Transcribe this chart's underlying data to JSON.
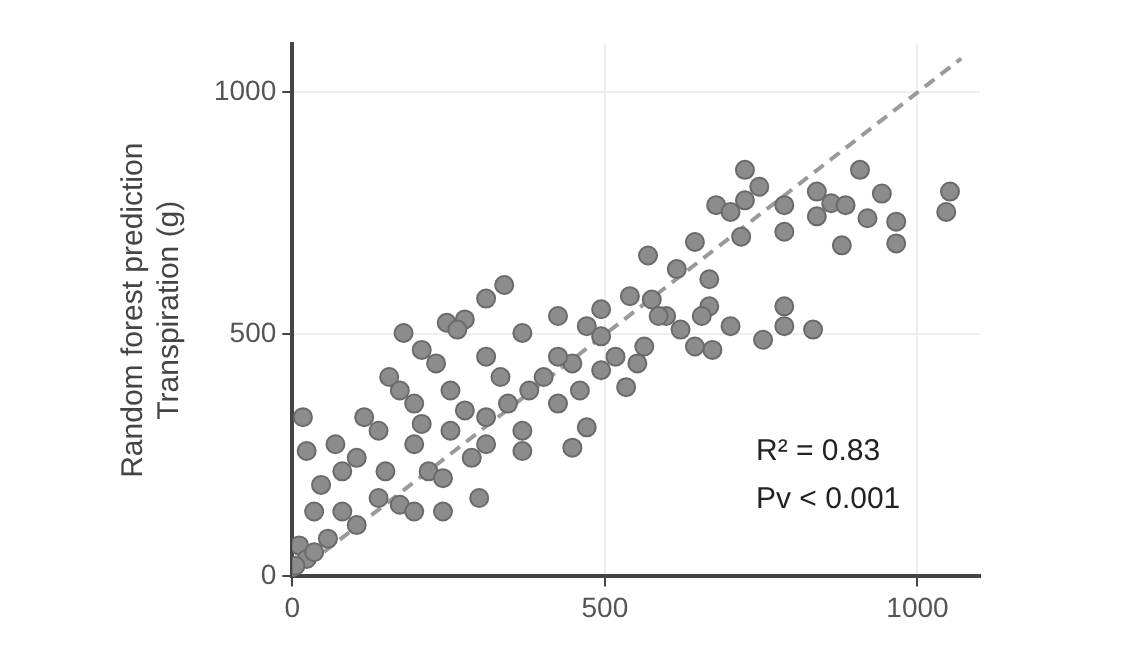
{
  "chart_data": {
    "type": "scatter",
    "ylabel": "Random forest prediction\nTranspiration (g)",
    "xlim": [
      0,
      1100
    ],
    "ylim": [
      0,
      1100
    ],
    "xticks": [
      0,
      500,
      1000
    ],
    "yticks": [
      0,
      500,
      1000
    ],
    "grid": true,
    "legend": false,
    "marker": "circle",
    "annotations": [
      "R² = 0.83",
      "Pv < 0.001"
    ],
    "series": [
      {
        "color": "#8c8c8c",
        "x": [
          724,
          908,
          678,
          701,
          724,
          747,
          787,
          839,
          839,
          862,
          885,
          879,
          920,
          943,
          966,
          966,
          1052,
          1046,
          787,
          718,
          644,
          569,
          615,
          667,
          667,
          787,
          787,
          753,
          833,
          701,
          672,
          644,
          621,
          598,
          540,
          575,
          494,
          471,
          425,
          368,
          339,
          310,
          178,
          247,
          276,
          207,
          155,
          17,
          23,
          563,
          552,
          534,
          471,
          448,
          368,
          299,
          241,
          494,
          448,
          402,
          425,
          345,
          310,
          253,
          195,
          138,
          80,
          35,
          11,
          57,
          103,
          172,
          218,
          287,
          368,
          425,
          494,
          310,
          264,
          230,
          172,
          115,
          69,
          46,
          103,
          149,
          195,
          253,
          333,
          379,
          276,
          207,
          138,
          80,
          23,
          5,
          35,
          195,
          241,
          310,
          460,
          517,
          586,
          655
        ],
        "values": [
          840,
          840,
          767,
          753,
          777,
          805,
          767,
          795,
          744,
          771,
          767,
          684,
          740,
          791,
          733,
          688,
          795,
          753,
          712,
          702,
          691,
          663,
          635,
          614,
          558,
          558,
          517,
          489,
          510,
          517,
          468,
          475,
          510,
          538,
          579,
          572,
          552,
          517,
          538,
          503,
          602,
          574,
          503,
          524,
          531,
          468,
          412,
          329,
          259,
          475,
          440,
          391,
          308,
          266,
          259,
          162,
          134,
          426,
          440,
          412,
          357,
          357,
          329,
          384,
          357,
          301,
          217,
          134,
          64,
          78,
          106,
          148,
          217,
          245,
          301,
          454,
          496,
          454,
          510,
          440,
          384,
          329,
          273,
          189,
          245,
          217,
          273,
          301,
          412,
          384,
          343,
          315,
          162,
          134,
          36,
          22,
          50,
          134,
          203,
          273,
          384,
          454,
          538,
          538
        ]
      },
      {
        "type": "line",
        "color": "#9a9a9a",
        "line_style": "dashed",
        "marker": "none",
        "x": [
          0,
          1070
        ],
        "values": [
          0,
          1070
        ]
      }
    ]
  }
}
